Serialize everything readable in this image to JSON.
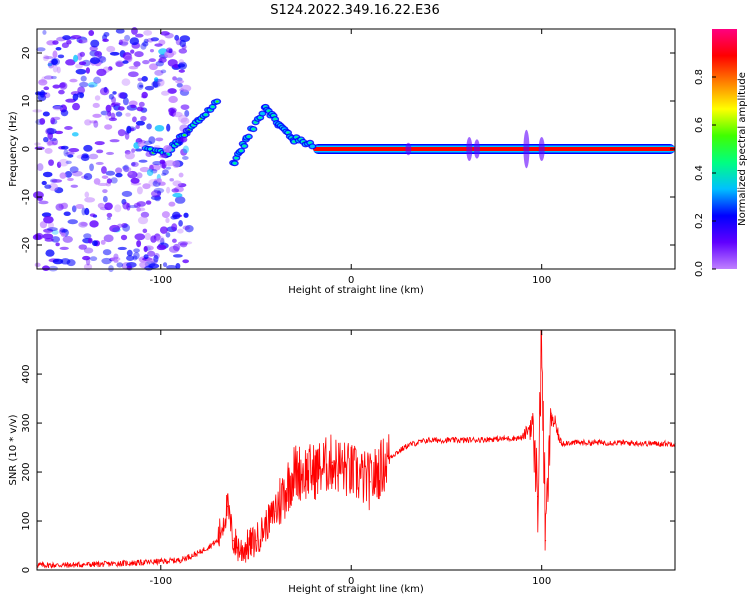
{
  "figure": {
    "title": "S124.2022.349.16.22.E36"
  },
  "chart_data": [
    {
      "type": "heatmap",
      "title": "",
      "xlabel": "Height of straight line (km)",
      "ylabel": "Frequency (Hz)",
      "xlim": [
        -165,
        170
      ],
      "ylim": [
        -25,
        25
      ],
      "x_ticks": [
        -100,
        0,
        100
      ],
      "y_ticks": [
        -20,
        -10,
        0,
        10,
        20
      ],
      "colorbar": {
        "label": "Normalized spectral amplitude",
        "range": [
          0.0,
          1.0
        ],
        "ticks": [
          0.0,
          0.2,
          0.4,
          0.6,
          0.8
        ],
        "colormap": [
          "#c080ff",
          "#6000ff",
          "#0000ff",
          "#00c0ff",
          "#00ff80",
          "#40ff00",
          "#ffff00",
          "#ff8000",
          "#ff0000",
          "#ff0080"
        ]
      },
      "features": [
        {
          "kind": "carrier_line",
          "frequency_hz": 0,
          "x_from": -20,
          "x_to": 170,
          "amplitude": 0.95
        },
        {
          "kind": "rising_trace",
          "points": [
            [
              -108,
              0
            ],
            [
              -97,
              -1
            ],
            [
              -90,
              2
            ],
            [
              -80,
              6
            ],
            [
              -70,
              10
            ]
          ],
          "amplitude": 0.45
        },
        {
          "kind": "doppler_arc",
          "points": [
            [
              -62,
              -3
            ],
            [
              -55,
              2
            ],
            [
              -45,
              9
            ],
            [
              -38,
              5
            ],
            [
              -30,
              2
            ],
            [
              -20,
              1
            ]
          ],
          "amplitude": 0.4
        },
        {
          "kind": "noise_field",
          "x_from": -165,
          "x_to": -85,
          "amplitude": 0.2
        }
      ]
    },
    {
      "type": "line",
      "title": "",
      "xlabel": "Height of straight line (km)",
      "ylabel": "SNR (10 * v/v)",
      "xlim": [
        -165,
        170
      ],
      "ylim": [
        0,
        490
      ],
      "x_ticks": [
        -100,
        0,
        100
      ],
      "y_ticks": [
        0,
        100,
        200,
        300,
        400
      ],
      "color": "#ff0000",
      "series": [
        {
          "x": [
            -165,
            -150,
            -130,
            -110,
            -90,
            -80,
            -70,
            -65,
            -62,
            -58,
            -50,
            -40,
            -30,
            -20,
            -10,
            0,
            10,
            20,
            30,
            40,
            60,
            80,
            90,
            95,
            98,
            100,
            102,
            105,
            110,
            120,
            140,
            160,
            170
          ],
          "values": [
            10,
            10,
            12,
            15,
            20,
            35,
            60,
            130,
            60,
            40,
            60,
            120,
            200,
            200,
            220,
            200,
            180,
            230,
            255,
            265,
            265,
            268,
            270,
            300,
            150,
            480,
            60,
            320,
            260,
            260,
            260,
            258,
            258
          ]
        }
      ]
    }
  ]
}
